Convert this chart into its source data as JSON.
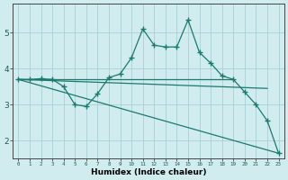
{
  "xlabel": "Humidex (Indice chaleur)",
  "ylabel": "",
  "background_color": "#d0ecef",
  "grid_color": "#a8d0d4",
  "line_color": "#1a7a6e",
  "xlim": [
    -0.5,
    23.5
  ],
  "ylim": [
    1.5,
    5.8
  ],
  "xticks": [
    0,
    1,
    2,
    3,
    4,
    5,
    6,
    7,
    8,
    9,
    10,
    11,
    12,
    13,
    14,
    15,
    16,
    17,
    18,
    19,
    20,
    21,
    22,
    23
  ],
  "yticks": [
    2,
    3,
    4,
    5
  ],
  "line1_x": [
    0,
    1,
    2,
    3,
    4,
    5,
    6,
    7,
    8,
    9,
    10,
    11,
    12,
    13,
    14,
    15,
    16,
    17,
    18,
    19,
    20,
    21,
    22,
    23
  ],
  "line1_y": [
    3.7,
    3.7,
    3.72,
    3.7,
    3.5,
    3.0,
    2.95,
    3.3,
    3.75,
    3.85,
    4.3,
    5.1,
    4.65,
    4.6,
    4.6,
    5.35,
    4.45,
    4.15,
    3.8,
    3.7,
    3.35,
    3.0,
    2.55,
    1.65
  ],
  "line2_x": [
    0,
    19
  ],
  "line2_y": [
    3.7,
    3.7
  ],
  "line3_x": [
    0,
    22
  ],
  "line3_y": [
    3.7,
    3.45
  ],
  "line4_x": [
    0,
    23
  ],
  "line4_y": [
    3.7,
    1.65
  ]
}
